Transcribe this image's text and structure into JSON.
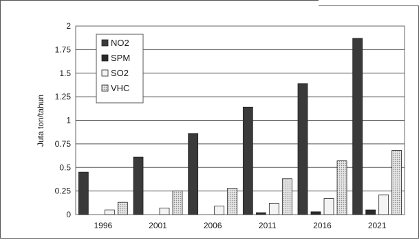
{
  "chart_data": {
    "type": "bar",
    "title": "",
    "xlabel": "",
    "ylabel": "Juta ton/tahun",
    "categories": [
      "1996",
      "2001",
      "2006",
      "2011",
      "2016",
      "2021"
    ],
    "ylim": [
      0,
      2
    ],
    "yticks": [
      "0",
      "0.25",
      "0.5",
      "0.75",
      "1",
      "1.25",
      "1.5",
      "1.75",
      "2"
    ],
    "grid": true,
    "legend_position": "top-left",
    "series": [
      {
        "name": "NO2",
        "values": [
          0.45,
          0.61,
          0.86,
          1.14,
          1.39,
          1.87
        ],
        "color": "#3a3a3a"
      },
      {
        "name": "SPM",
        "values": [
          0.0,
          0.0,
          0.0,
          0.02,
          0.03,
          0.05
        ],
        "color": "#2a2a2a"
      },
      {
        "name": "SO2",
        "values": [
          0.05,
          0.07,
          0.09,
          0.12,
          0.17,
          0.21
        ],
        "color": "#f4f4f4"
      },
      {
        "name": "VHC",
        "values": [
          0.13,
          0.25,
          0.28,
          0.38,
          0.57,
          0.68
        ],
        "color": "#d6d6d6"
      }
    ]
  }
}
